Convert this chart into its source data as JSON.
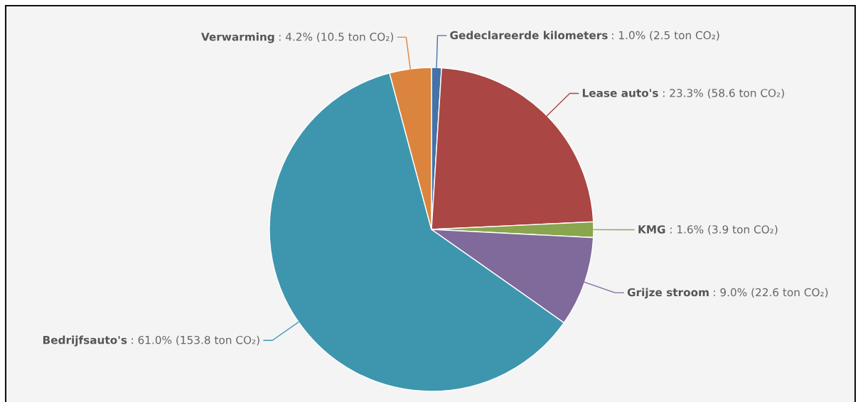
{
  "chart_data": {
    "type": "pie",
    "categories": [
      "Gedeclareerde kilometers",
      "Lease auto's",
      "KMG",
      "Grijze stroom",
      "Bedrijfsauto's",
      "Verwarming"
    ],
    "values": [
      2.5,
      58.6,
      3.9,
      22.6,
      153.8,
      10.5
    ],
    "colors": [
      "#4572a7",
      "#aa4643",
      "#89a54e",
      "#80699b",
      "#3d96ae",
      "#db843d"
    ],
    "value_labels": [
      ": 1.0% (2.5 ton CO₂)",
      ": 23.3% (58.6 ton CO₂)",
      ": 1.6% (3.9 ton CO₂)",
      ": 9.0% (22.6 ton CO₂)",
      ": 61.0% (153.8 ton CO₂)",
      ": 4.2% (10.5 ton CO₂)"
    ]
  }
}
